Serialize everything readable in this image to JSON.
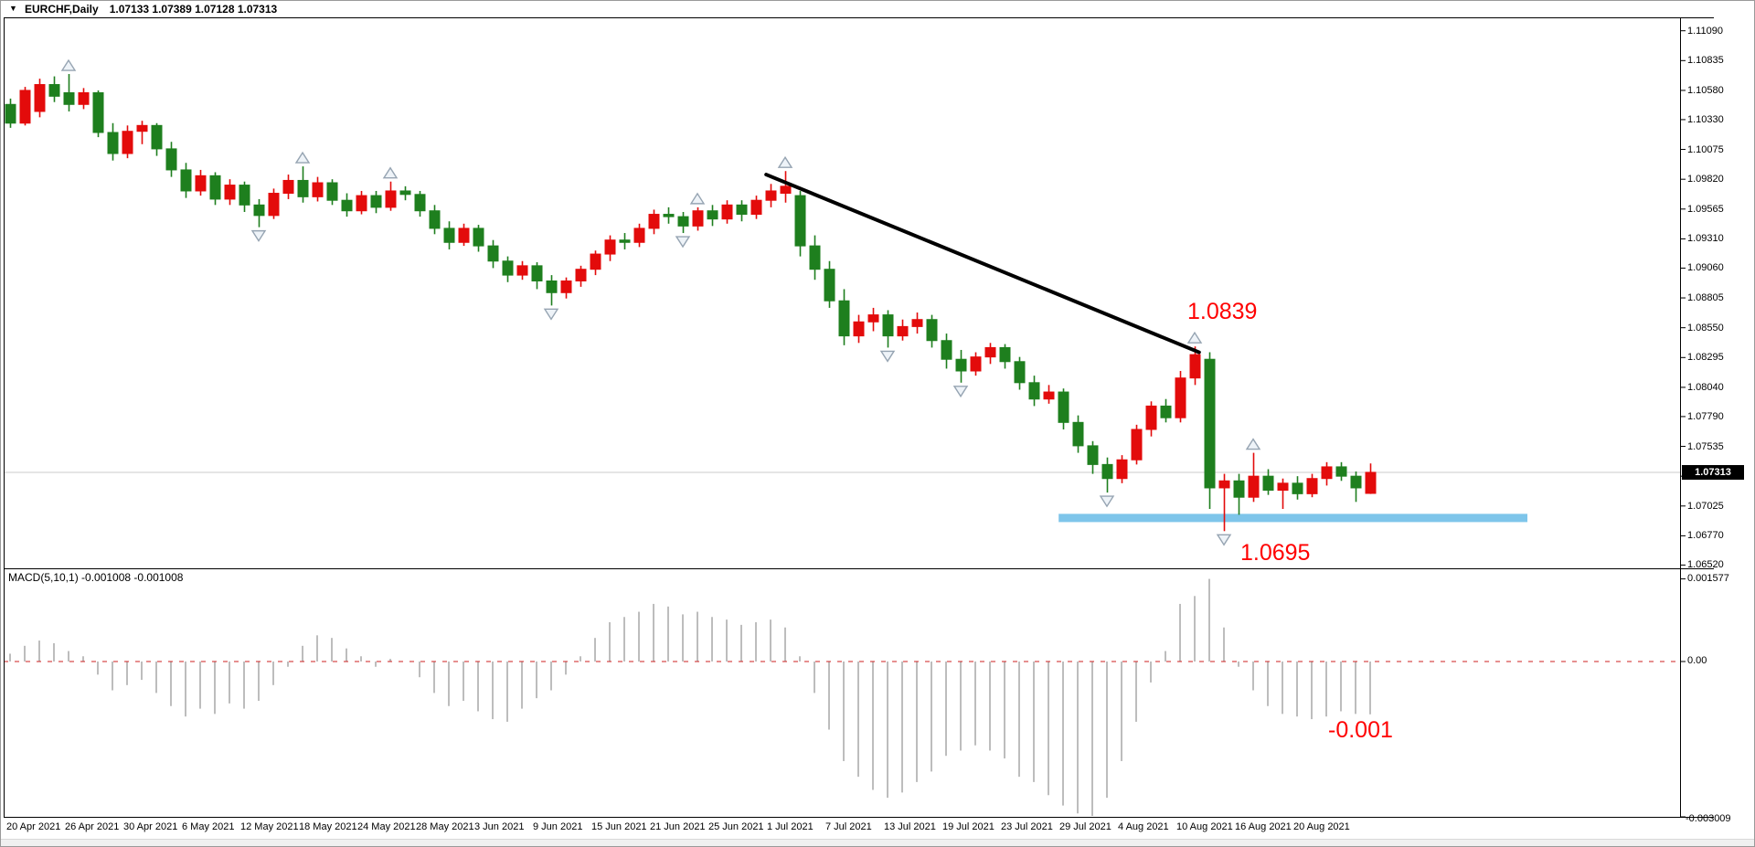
{
  "window": {
    "title_symbol": "EURCHF,Daily",
    "title_ohlc": "1.07133 1.07389 1.07128 1.07313"
  },
  "price_axis": {
    "labels": [
      "1.11090",
      "1.10835",
      "1.10580",
      "1.10330",
      "1.10075",
      "1.09820",
      "1.09565",
      "1.09310",
      "1.09060",
      "1.08805",
      "1.08550",
      "1.08295",
      "1.08040",
      "1.07790",
      "1.07535",
      "1.07280",
      "1.07025",
      "1.06770",
      "1.06520"
    ],
    "current_price_tag": "1.07313"
  },
  "macd_axis": {
    "max_label": "0.001577",
    "zero_label": "0.00",
    "min_label": "-0.003009"
  },
  "macd_panel": {
    "label": "MACD(5,10,1) -0.001008 -0.001008",
    "annotation": "-0.001"
  },
  "annotations": {
    "peak_price": "1.0839",
    "support_price": "1.0695"
  },
  "time_axis": {
    "labels": [
      "20 Apr 2021",
      "26 Apr 2021",
      "30 Apr 2021",
      "6 May 2021",
      "12 May 2021",
      "18 May 2021",
      "24 May 2021",
      "28 May 2021",
      "3 Jun 2021",
      "9 Jun 2021",
      "15 Jun 2021",
      "21 Jun 2021",
      "25 Jun 2021",
      "1 Jul 2021",
      "7 Jul 2021",
      "13 Jul 2021",
      "19 Jul 2021",
      "23 Jul 2021",
      "29 Jul 2021",
      "4 Aug 2021",
      "10 Aug 2021",
      "16 Aug 2021",
      "20 Aug 2021"
    ]
  },
  "colors": {
    "bull_candle": "#e30b0b",
    "bear_candle": "#1e7f1e",
    "macd_bar": "#bdbdbd",
    "macd_zero_line": "#cc2222",
    "support_line": "#7ec5ea",
    "trendline": "#000000",
    "annotation_red": "#ff0000",
    "grid_line": "#cbcbcb",
    "frame": "#000000"
  },
  "chart_data": {
    "type": "candlestick",
    "symbol": "EURCHF",
    "timeframe": "Daily",
    "title": "EURCHF,Daily 1.07133 1.07389 1.07128 1.07313",
    "current_bar": {
      "open": 1.07133,
      "high": 1.07389,
      "low": 1.07128,
      "close": 1.07313
    },
    "color_scheme_note": "red body = close>=open (up), green body = close<open (down)",
    "y_axis_range": [
      1.0652,
      1.1109
    ],
    "x_labels": [
      "20 Apr 2021",
      "26 Apr 2021",
      "30 Apr 2021",
      "6 May 2021",
      "12 May 2021",
      "18 May 2021",
      "24 May 2021",
      "28 May 2021",
      "3 Jun 2021",
      "9 Jun 2021",
      "15 Jun 2021",
      "21 Jun 2021",
      "25 Jun 2021",
      "1 Jul 2021",
      "7 Jul 2021",
      "13 Jul 2021",
      "19 Jul 2021",
      "23 Jul 2021",
      "29 Jul 2021",
      "4 Aug 2021",
      "10 Aug 2021",
      "16 Aug 2021",
      "20 Aug 2021"
    ],
    "bars_per_label": 4,
    "bars": [
      [
        1.1046,
        1.1051,
        1.1026,
        1.103
      ],
      [
        1.103,
        1.1061,
        1.1028,
        1.1058
      ],
      [
        1.104,
        1.1068,
        1.1035,
        1.1063
      ],
      [
        1.1063,
        1.107,
        1.1048,
        1.1053
      ],
      [
        1.1056,
        1.1072,
        1.104,
        1.1046
      ],
      [
        1.1046,
        1.106,
        1.1042,
        1.1056
      ],
      [
        1.1056,
        1.1058,
        1.1018,
        1.1022
      ],
      [
        1.1022,
        1.103,
        1.0998,
        1.1004
      ],
      [
        1.1004,
        1.1028,
        1.1,
        1.1023
      ],
      [
        1.1023,
        1.1032,
        1.1012,
        1.1028
      ],
      [
        1.1028,
        1.103,
        1.1002,
        1.1008
      ],
      [
        1.1008,
        1.1014,
        1.0984,
        1.099
      ],
      [
        1.099,
        1.0996,
        1.0966,
        1.0972
      ],
      [
        1.0972,
        1.099,
        1.0968,
        1.0985
      ],
      [
        1.0985,
        1.0988,
        1.096,
        1.0965
      ],
      [
        1.0965,
        1.0982,
        1.096,
        1.0977
      ],
      [
        1.0977,
        1.098,
        1.0954,
        1.096
      ],
      [
        1.096,
        1.0965,
        1.0941,
        1.0951
      ],
      [
        1.0951,
        1.0974,
        1.0948,
        1.097
      ],
      [
        1.097,
        1.0986,
        1.0965,
        1.0981
      ],
      [
        1.0981,
        1.0993,
        1.0962,
        1.0967
      ],
      [
        1.0967,
        1.0984,
        1.0963,
        1.0979
      ],
      [
        1.0979,
        1.0982,
        1.096,
        1.0964
      ],
      [
        1.0964,
        1.097,
        1.095,
        1.0955
      ],
      [
        1.0955,
        1.0972,
        1.0952,
        1.0968
      ],
      [
        1.0968,
        1.0972,
        1.0953,
        1.0958
      ],
      [
        1.0958,
        1.098,
        1.0955,
        1.0972
      ],
      [
        1.0972,
        1.0976,
        1.0964,
        1.0969
      ],
      [
        1.0969,
        1.0972,
        1.095,
        1.0955
      ],
      [
        1.0955,
        1.096,
        1.0935,
        1.094
      ],
      [
        1.094,
        1.0946,
        1.0922,
        1.0928
      ],
      [
        1.0928,
        1.0944,
        1.0925,
        1.094
      ],
      [
        1.094,
        1.0943,
        1.092,
        1.0925
      ],
      [
        1.0925,
        1.093,
        1.0906,
        1.0912
      ],
      [
        1.0912,
        1.0916,
        1.0894,
        1.09
      ],
      [
        1.09,
        1.0912,
        1.0896,
        1.0908
      ],
      [
        1.0908,
        1.0911,
        1.0888,
        1.0895
      ],
      [
        1.0895,
        1.09,
        1.0874,
        1.0885
      ],
      [
        1.0885,
        1.0898,
        1.088,
        1.0895
      ],
      [
        1.0895,
        1.0908,
        1.089,
        1.0905
      ],
      [
        1.0905,
        1.0921,
        1.09,
        1.0918
      ],
      [
        1.0918,
        1.0934,
        1.0912,
        1.093
      ],
      [
        1.093,
        1.0936,
        1.0922,
        1.0928
      ],
      [
        1.0928,
        1.0944,
        1.0924,
        1.094
      ],
      [
        1.094,
        1.0956,
        1.0935,
        1.0952
      ],
      [
        1.0952,
        1.0958,
        1.0944,
        1.095
      ],
      [
        1.095,
        1.0954,
        1.0936,
        1.0942
      ],
      [
        1.0942,
        1.0958,
        1.0938,
        1.0955
      ],
      [
        1.0955,
        1.096,
        1.0942,
        1.0948
      ],
      [
        1.0948,
        1.0964,
        1.0944,
        1.096
      ],
      [
        1.096,
        1.0964,
        1.0946,
        1.0952
      ],
      [
        1.0952,
        1.0968,
        1.0948,
        1.0964
      ],
      [
        1.0964,
        1.0978,
        1.0958,
        1.0972
      ],
      [
        1.097,
        1.0989,
        1.0962,
        1.0976
      ],
      [
        1.0968,
        1.0972,
        1.0916,
        1.0925
      ],
      [
        1.0925,
        1.0934,
        1.0896,
        1.0905
      ],
      [
        1.0905,
        1.0912,
        1.0872,
        1.0878
      ],
      [
        1.0878,
        1.0888,
        1.084,
        1.0848
      ],
      [
        1.0848,
        1.0866,
        1.0842,
        1.086
      ],
      [
        1.086,
        1.0872,
        1.0852,
        1.0866
      ],
      [
        1.0866,
        1.087,
        1.0838,
        1.0848
      ],
      [
        1.0848,
        1.0862,
        1.0844,
        1.0856
      ],
      [
        1.0856,
        1.0868,
        1.085,
        1.0862
      ],
      [
        1.0862,
        1.0866,
        1.0838,
        1.0844
      ],
      [
        1.0844,
        1.085,
        1.082,
        1.0828
      ],
      [
        1.0828,
        1.0836,
        1.0808,
        1.0818
      ],
      [
        1.0818,
        1.0834,
        1.0814,
        1.083
      ],
      [
        1.083,
        1.0842,
        1.0824,
        1.0838
      ],
      [
        1.0838,
        1.0841,
        1.082,
        1.0826
      ],
      [
        1.0826,
        1.083,
        1.0802,
        1.0808
      ],
      [
        1.0808,
        1.0814,
        1.0788,
        1.0794
      ],
      [
        1.0794,
        1.0806,
        1.079,
        1.08
      ],
      [
        1.08,
        1.0803,
        1.0768,
        1.0774
      ],
      [
        1.0774,
        1.078,
        1.0748,
        1.0754
      ],
      [
        1.0754,
        1.0758,
        1.073,
        1.0738
      ],
      [
        1.0738,
        1.0744,
        1.0714,
        1.0726
      ],
      [
        1.0726,
        1.0746,
        1.0722,
        1.0742
      ],
      [
        1.0742,
        1.0772,
        1.0738,
        1.0768
      ],
      [
        1.0768,
        1.0792,
        1.0762,
        1.0788
      ],
      [
        1.0788,
        1.0794,
        1.0774,
        1.0778
      ],
      [
        1.0778,
        1.0818,
        1.0774,
        1.0812
      ],
      [
        1.0812,
        1.0839,
        1.0806,
        1.0832
      ],
      [
        1.0828,
        1.0834,
        1.07,
        1.0718
      ],
      [
        1.0718,
        1.073,
        1.0681,
        1.0724
      ],
      [
        1.0724,
        1.073,
        1.0695,
        1.071
      ],
      [
        1.071,
        1.0748,
        1.0706,
        1.0728
      ],
      [
        1.0728,
        1.0734,
        1.0712,
        1.0716
      ],
      [
        1.0716,
        1.0726,
        1.07,
        1.0722
      ],
      [
        1.0722,
        1.0728,
        1.0708,
        1.0713
      ],
      [
        1.0713,
        1.073,
        1.071,
        1.0726
      ],
      [
        1.0726,
        1.074,
        1.072,
        1.0736
      ],
      [
        1.0736,
        1.074,
        1.0724,
        1.0728
      ],
      [
        1.0728,
        1.0732,
        1.0706,
        1.0718
      ],
      [
        1.07133,
        1.07389,
        1.07128,
        1.07313
      ]
    ],
    "fractals": {
      "up": [
        [
          4,
          1.1072
        ],
        [
          20,
          1.0993
        ],
        [
          26,
          1.098
        ],
        [
          47,
          1.0958
        ],
        [
          53,
          1.0989
        ],
        [
          81,
          1.0839
        ],
        [
          85,
          1.0748
        ]
      ],
      "down": [
        [
          17,
          1.0941
        ],
        [
          37,
          1.0874
        ],
        [
          46,
          1.0936
        ],
        [
          60,
          1.0838
        ],
        [
          65,
          1.0808
        ],
        [
          75,
          1.0714
        ],
        [
          83,
          1.0681
        ]
      ]
    },
    "trendline": {
      "from_bar": 51.7,
      "from_price": 1.0986,
      "to_bar": 81.3,
      "to_price": 1.0834
    },
    "support_line": {
      "price": 1.0695,
      "from_bar": 71.7,
      "to_bar": 103.75
    },
    "annotations": [
      {
        "text": "1.0839",
        "bar": 80,
        "price": 1.0875,
        "color": "#ff0000"
      },
      {
        "text": "1.0695",
        "bar": 84,
        "price": 1.067,
        "color": "#ff0000"
      },
      {
        "text": "-0.001",
        "panel": "macd",
        "value": -0.001,
        "color": "#ff0000"
      }
    ],
    "indicator": {
      "name": "MACD",
      "settings": "MACD(5,10,1)",
      "readout": [
        -0.001008,
        -0.001008
      ],
      "axis_max": 0.001577,
      "axis_min": -0.003009,
      "values_x1e3": [
        0.15,
        0.3,
        0.4,
        0.35,
        0.2,
        0.1,
        -0.25,
        -0.55,
        -0.45,
        -0.35,
        -0.6,
        -0.85,
        -1.05,
        -0.9,
        -1.0,
        -0.8,
        -0.9,
        -0.75,
        -0.45,
        -0.1,
        0.3,
        0.5,
        0.45,
        0.25,
        0.1,
        -0.1,
        0.05,
        0.0,
        -0.3,
        -0.6,
        -0.85,
        -0.75,
        -0.95,
        -1.1,
        -1.15,
        -0.9,
        -0.7,
        -0.55,
        -0.25,
        0.1,
        0.45,
        0.75,
        0.85,
        0.95,
        1.1,
        1.05,
        0.9,
        0.95,
        0.85,
        0.8,
        0.7,
        0.75,
        0.8,
        0.65,
        0.1,
        -0.6,
        -1.3,
        -1.9,
        -2.2,
        -2.45,
        -2.6,
        -2.5,
        -2.3,
        -2.1,
        -1.8,
        -1.7,
        -1.6,
        -1.7,
        -1.85,
        -2.2,
        -2.3,
        -2.55,
        -2.75,
        -2.9,
        -3.009,
        -2.6,
        -1.9,
        -1.15,
        -0.4,
        0.2,
        1.1,
        1.25,
        1.577,
        0.65,
        -0.1,
        -0.55,
        -0.85,
        -1.0,
        -1.05,
        -1.1,
        -1.05,
        -0.95,
        -1.0,
        -1.008
      ]
    }
  }
}
